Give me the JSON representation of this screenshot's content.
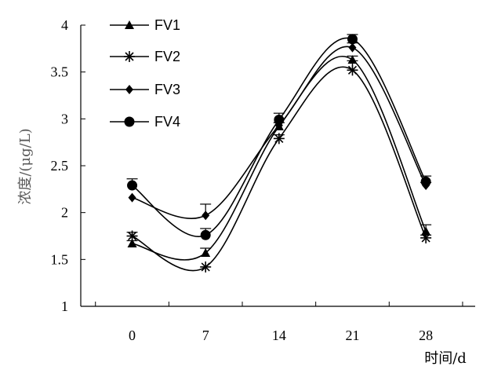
{
  "chart_data": {
    "type": "line",
    "ylabel": "浓度/(μg/L)",
    "xlabel": "时间/d",
    "x": [
      0,
      7,
      14,
      21,
      28
    ],
    "x_tick_labels": [
      "0",
      "7",
      "14",
      "21",
      "28"
    ],
    "ylim": [
      1,
      4
    ],
    "y_tick_labels": [
      "1",
      "1.5",
      "2",
      "2.5",
      "3",
      "3.5",
      "4"
    ],
    "y_ticks": [
      1,
      1.5,
      2,
      2.5,
      3,
      3.5,
      4
    ],
    "legend_position": "top-left",
    "grid": false,
    "series": [
      {
        "name": "FV1",
        "marker": "triangle",
        "values": [
          1.67,
          1.57,
          2.92,
          3.63,
          1.8
        ],
        "err": [
          0.03,
          0.05,
          0.04,
          0.04,
          0.07
        ]
      },
      {
        "name": "FV2",
        "marker": "asterisk",
        "values": [
          1.75,
          1.42,
          2.79,
          3.52,
          1.73
        ],
        "err": [
          0.04,
          0.0,
          0.04,
          0.1,
          0.03
        ]
      },
      {
        "name": "FV3",
        "marker": "diamond",
        "values": [
          2.16,
          1.97,
          2.93,
          3.76,
          2.29
        ],
        "err": [
          0.0,
          0.12,
          0.03,
          0.05,
          0.03
        ]
      },
      {
        "name": "FV4",
        "marker": "circle",
        "values": [
          2.29,
          1.76,
          2.99,
          3.85,
          2.33
        ],
        "err": [
          0.07,
          0.07,
          0.07,
          0.05,
          0.06
        ]
      }
    ]
  }
}
